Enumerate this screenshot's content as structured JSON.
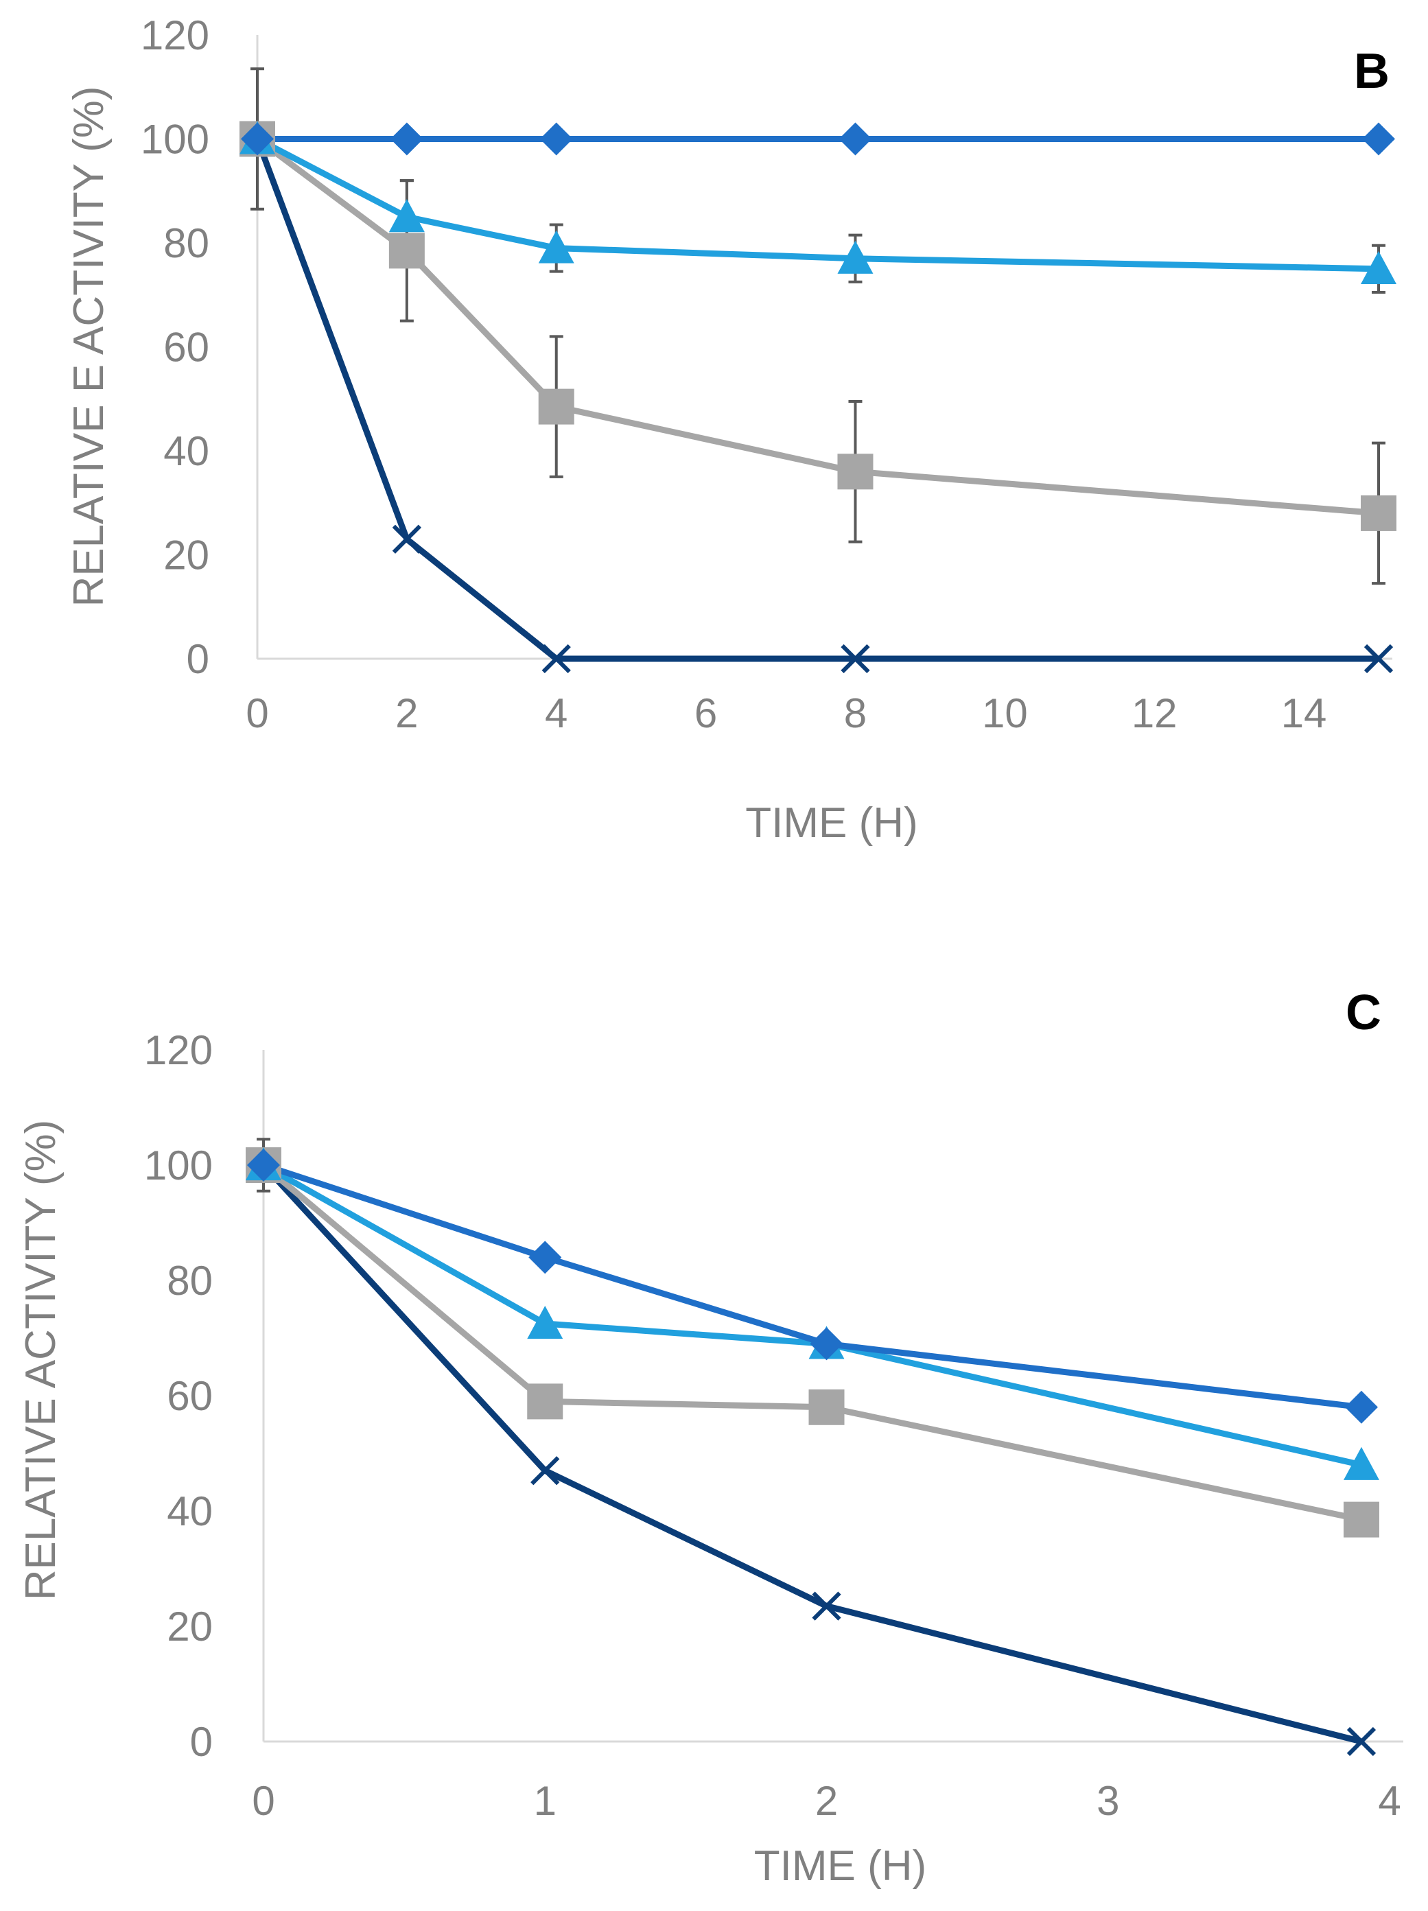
{
  "chart_data": [
    {
      "type": "line",
      "panel_label": "B",
      "xlabel": "TIME (H)",
      "ylabel": "RELATIVE E ACTIVITY (%)",
      "xlim": [
        0,
        15
      ],
      "ylim": [
        0,
        120
      ],
      "x_ticks": [
        0,
        2,
        4,
        6,
        8,
        10,
        12,
        14
      ],
      "y_ticks": [
        0,
        20,
        40,
        60,
        80,
        100,
        120
      ],
      "x": [
        0,
        2,
        4,
        8,
        15
      ],
      "series": [
        {
          "name": "diamond series",
          "marker": "diamond",
          "color": "#1f6fc8",
          "values": [
            100,
            100,
            100,
            100,
            100
          ]
        },
        {
          "name": "triangle series",
          "marker": "triangle",
          "color": "#21a0de",
          "values": [
            100,
            85,
            79,
            77,
            75
          ],
          "error": [
            0,
            7,
            4.5,
            4.5,
            4.5
          ]
        },
        {
          "name": "square series",
          "marker": "square",
          "color": "#a6a6a6",
          "values": [
            100,
            78.5,
            48.5,
            36,
            28
          ],
          "error": [
            13.5,
            13.5,
            13.5,
            13.5,
            13.5
          ]
        },
        {
          "name": "x series",
          "marker": "x",
          "color": "#0b3d78",
          "values": [
            100,
            23,
            0,
            0,
            0
          ]
        }
      ]
    },
    {
      "type": "line",
      "panel_label": "C",
      "xlabel": "TIME (H)",
      "ylabel": "RELATIVE ACTIVITY (%)",
      "xlim": [
        0,
        4
      ],
      "ylim": [
        0,
        120
      ],
      "x_ticks": [
        0,
        1,
        2,
        3,
        4
      ],
      "y_ticks": [
        0,
        20,
        40,
        60,
        80,
        100,
        120
      ],
      "x": [
        0,
        1,
        2,
        3.9
      ],
      "series": [
        {
          "name": "diamond series",
          "marker": "diamond",
          "color": "#1f6fc8",
          "values": [
            100,
            84,
            69,
            58
          ],
          "error": [
            0,
            0,
            0,
            0
          ]
        },
        {
          "name": "triangle series",
          "marker": "triangle",
          "color": "#21a0de",
          "values": [
            100,
            72.5,
            69,
            48
          ]
        },
        {
          "name": "square series",
          "marker": "square",
          "color": "#a6a6a6",
          "values": [
            100,
            59,
            58,
            38.5
          ],
          "error": [
            4.5,
            0,
            0,
            0
          ]
        },
        {
          "name": "x series",
          "marker": "x",
          "color": "#0b3d78",
          "values": [
            100,
            47,
            23.5,
            0
          ]
        }
      ]
    }
  ]
}
